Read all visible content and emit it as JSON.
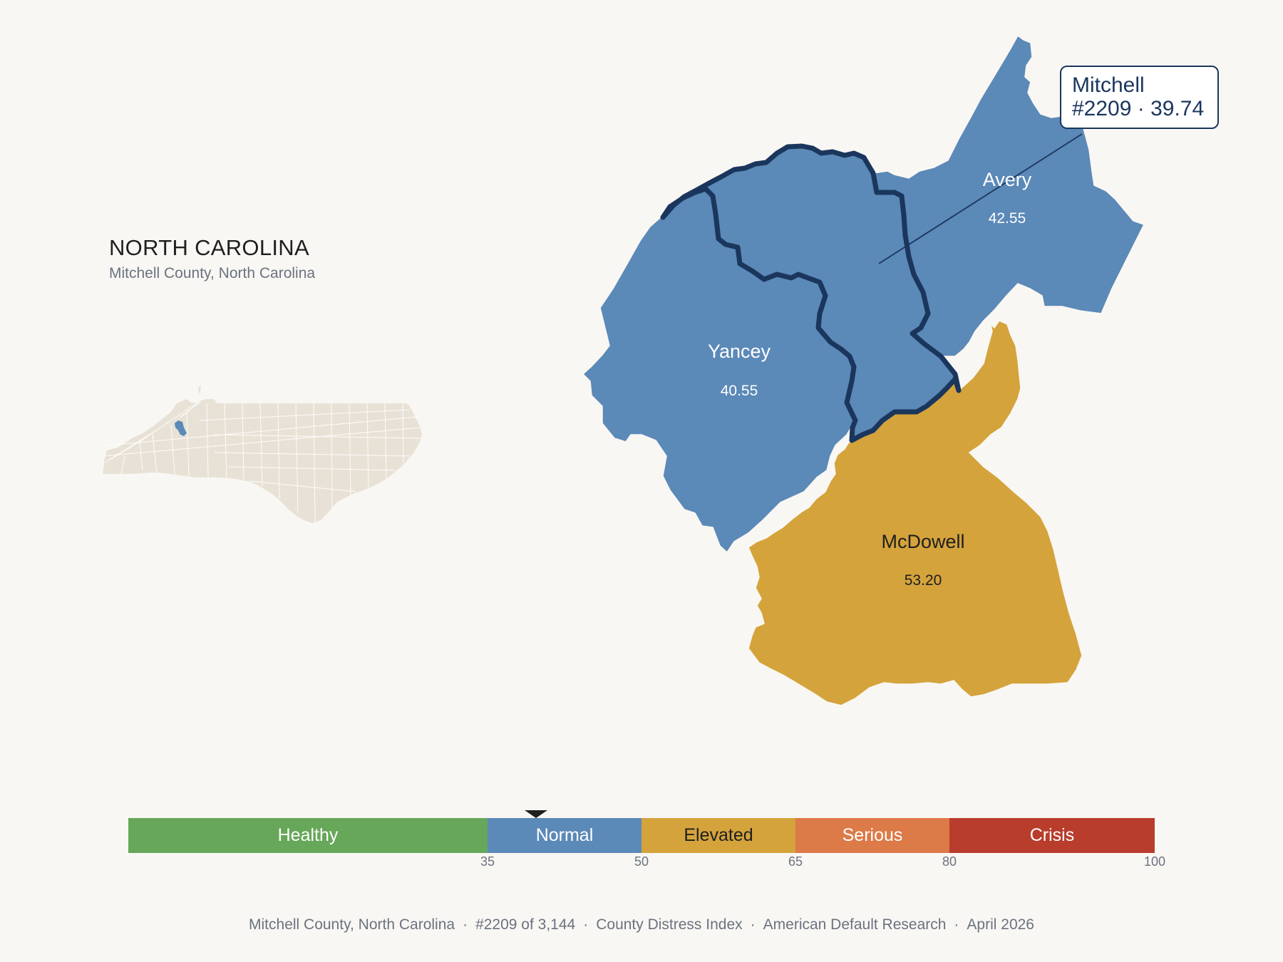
{
  "state": {
    "title": "NORTH CAROLINA",
    "subtitle": "Mitchell County, North Carolina"
  },
  "counties": [
    {
      "name": "Mitchell",
      "score": "39.74",
      "band": "Normal",
      "color": "#5b89b8",
      "focus": true
    },
    {
      "name": "Avery",
      "score": "42.55",
      "band": "Normal",
      "color": "#5b89b8"
    },
    {
      "name": "Yancey",
      "score": "40.55",
      "band": "Normal",
      "color": "#5b89b8"
    },
    {
      "name": "McDowell",
      "score": "53.20",
      "band": "Elevated",
      "color": "#d4a33b"
    }
  ],
  "callout": {
    "name": "Mitchell",
    "detail": "#2209 · 39.74"
  },
  "scale": {
    "segments": [
      {
        "label": "Healthy",
        "from": 0,
        "to": 35,
        "color": "#67a75a"
      },
      {
        "label": "Normal",
        "from": 35,
        "to": 50,
        "color": "#5b89b8"
      },
      {
        "label": "Elevated",
        "from": 50,
        "to": 65,
        "color": "#d4a33b"
      },
      {
        "label": "Serious",
        "from": 65,
        "to": 80,
        "color": "#dc7a48"
      },
      {
        "label": "Crisis",
        "from": 80,
        "to": 100,
        "color": "#b83d2c"
      }
    ],
    "ticks": [
      "35",
      "50",
      "65",
      "80",
      "100"
    ],
    "marker_value": 39.74
  },
  "footer": {
    "county": "Mitchell County, North Carolina",
    "rank": "#2209 of 3,144",
    "index": "County Distress Index",
    "source": "American Default Research",
    "date": "April 2026"
  }
}
